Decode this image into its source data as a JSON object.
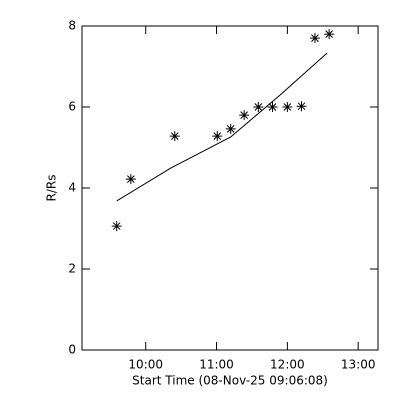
{
  "chart_data": {
    "type": "scatter",
    "xlabel": "Start Time (08-Nov-25 09:06:08)",
    "ylabel": "R/Rs",
    "xlim": [
      9.1,
      13.28
    ],
    "ylim": [
      0,
      8
    ],
    "xticks": [
      {
        "value": 10,
        "label": "10:00"
      },
      {
        "value": 11,
        "label": "11:00"
      },
      {
        "value": 12,
        "label": "12:00"
      },
      {
        "value": 13,
        "label": "13:00"
      }
    ],
    "yticks": [
      0,
      2,
      4,
      6,
      8
    ],
    "color": "#000000",
    "series": [
      {
        "x": [
          9.59,
          9.79,
          10.41,
          11.01,
          11.2,
          11.39,
          11.59,
          11.79,
          12.0,
          12.2,
          12.39,
          12.59
        ],
        "values": [
          3.06,
          4.22,
          5.28,
          5.28,
          5.46,
          5.8,
          6.0,
          6.0,
          6.0,
          6.02,
          7.7,
          7.8
        ]
      },
      {
        "type": "line",
        "x": [
          9.59,
          10.35,
          11.2,
          11.9,
          12.56
        ],
        "values": [
          3.68,
          4.49,
          5.26,
          6.3,
          7.33
        ]
      }
    ]
  }
}
